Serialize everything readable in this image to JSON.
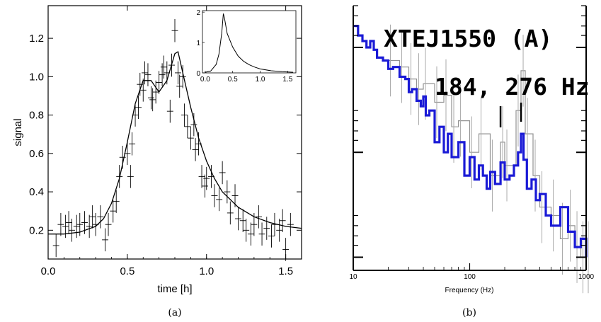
{
  "chart_data": [
    {
      "panel": "(a)",
      "type": "scatter",
      "xlabel": "time [h]",
      "ylabel": "signal",
      "xlim": [
        0.0,
        1.6
      ],
      "ylim": [
        0.05,
        1.37
      ],
      "xticks": [
        0.0,
        0.5,
        1.0,
        1.5
      ],
      "xtick_labels": [
        "0.0",
        "0.5",
        "1.0",
        "1.5"
      ],
      "yticks": [
        0.2,
        0.4,
        0.6,
        0.8,
        1.0,
        1.2
      ],
      "ytick_labels": [
        "0.2",
        "0.4",
        "0.6",
        "0.8",
        "1.0",
        "1.2"
      ],
      "grid": false,
      "series": [
        {
          "kind": "points_with_error_bars",
          "x": [
            0.05,
            0.08,
            0.11,
            0.13,
            0.15,
            0.18,
            0.2,
            0.23,
            0.26,
            0.28,
            0.3,
            0.33,
            0.36,
            0.38,
            0.41,
            0.43,
            0.45,
            0.47,
            0.5,
            0.52,
            0.53,
            0.55,
            0.57,
            0.58,
            0.6,
            0.61,
            0.63,
            0.65,
            0.66,
            0.68,
            0.7,
            0.72,
            0.73,
            0.75,
            0.77,
            0.78,
            0.8,
            0.82,
            0.83,
            0.85,
            0.86,
            0.88,
            0.9,
            0.92,
            0.93,
            0.95,
            0.97,
            0.99,
            1.0,
            1.03,
            1.05,
            1.08,
            1.1,
            1.13,
            1.15,
            1.18,
            1.2,
            1.23,
            1.25,
            1.28,
            1.3,
            1.33,
            1.35,
            1.38,
            1.41,
            1.43,
            1.46,
            1.48,
            1.5,
            1.53
          ],
          "y": [
            0.12,
            0.23,
            0.22,
            0.24,
            0.2,
            0.22,
            0.23,
            0.24,
            0.22,
            0.27,
            0.23,
            0.27,
            0.15,
            0.23,
            0.3,
            0.35,
            0.48,
            0.58,
            0.6,
            0.48,
            0.65,
            0.8,
            0.84,
            0.96,
            0.93,
            1.02,
            1.01,
            0.89,
            0.88,
            0.92,
            0.97,
            1.01,
            1.05,
            1.02,
            0.82,
            1.06,
            1.24,
            1.02,
            0.95,
            1.0,
            0.8,
            0.74,
            0.68,
            0.75,
            0.62,
            0.65,
            0.48,
            0.43,
            0.47,
            0.48,
            0.38,
            0.36,
            0.5,
            0.4,
            0.29,
            0.38,
            0.26,
            0.25,
            0.2,
            0.18,
            0.23,
            0.27,
            0.18,
            0.21,
            0.17,
            0.23,
            0.2,
            0.25,
            0.1,
            0.23
          ],
          "yerr": 0.06,
          "xerr": 0.02
        },
        {
          "kind": "fit_line",
          "x": [
            0.0,
            0.1,
            0.2,
            0.3,
            0.35,
            0.4,
            0.45,
            0.5,
            0.55,
            0.6,
            0.65,
            0.7,
            0.75,
            0.8,
            0.82,
            0.85,
            0.9,
            0.95,
            1.0,
            1.05,
            1.1,
            1.2,
            1.3,
            1.4,
            1.5,
            1.6
          ],
          "y": [
            0.18,
            0.18,
            0.19,
            0.22,
            0.26,
            0.34,
            0.47,
            0.66,
            0.86,
            0.98,
            0.98,
            0.92,
            0.98,
            1.12,
            1.13,
            1.02,
            0.84,
            0.68,
            0.56,
            0.47,
            0.4,
            0.32,
            0.27,
            0.24,
            0.22,
            0.21
          ]
        }
      ],
      "inset": {
        "type": "line",
        "xlim": [
          -0.05,
          1.65
        ],
        "ylim": [
          0,
          2.05
        ],
        "xtick_labels": [
          "0.0",
          "0.5",
          "1.0",
          "1.5"
        ],
        "ytick_labels": [
          "0",
          "1",
          "2"
        ],
        "x": [
          0.0,
          0.1,
          0.2,
          0.25,
          0.3,
          0.33,
          0.35,
          0.4,
          0.5,
          0.6,
          0.7,
          0.8,
          0.9,
          1.0,
          1.2,
          1.4,
          1.6
        ],
        "y": [
          0.02,
          0.06,
          0.28,
          0.62,
          1.3,
          1.95,
          1.8,
          1.3,
          0.85,
          0.55,
          0.38,
          0.27,
          0.19,
          0.13,
          0.07,
          0.04,
          0.02
        ]
      },
      "caption": "(a)"
    },
    {
      "panel": "(b)",
      "type": "line",
      "scale": "log-log",
      "title": "XTEJ1550 (A)",
      "annotation": "184, 276 Hz",
      "annotation_markers_hz": [
        184,
        276
      ],
      "xlabel": "Frequency (Hz)",
      "xlim": [
        10,
        1000
      ],
      "xtick_labels": [
        "10",
        "100",
        "1000"
      ],
      "series": [
        {
          "color": "#1a1ad6",
          "style": "steps",
          "x": [
            10,
            11,
            12,
            13,
            14,
            15,
            16,
            18,
            20,
            22,
            25,
            28,
            30,
            32,
            35,
            38,
            40,
            42,
            45,
            50,
            55,
            60,
            65,
            70,
            80,
            90,
            100,
            110,
            120,
            130,
            140,
            150,
            165,
            184,
            200,
            220,
            240,
            260,
            276,
            290,
            310,
            340,
            370,
            400,
            450,
            500,
            600,
            700,
            800,
            900,
            1000
          ],
          "y": [
            3.2,
            2.6,
            2.3,
            2.0,
            2.3,
            1.9,
            1.6,
            1.5,
            1.25,
            1.3,
            1.05,
            1.0,
            0.75,
            0.8,
            0.62,
            0.55,
            0.68,
            0.45,
            0.5,
            0.25,
            0.35,
            0.2,
            0.3,
            0.18,
            0.25,
            0.12,
            0.18,
            0.11,
            0.15,
            0.12,
            0.09,
            0.13,
            0.1,
            0.16,
            0.11,
            0.12,
            0.15,
            0.2,
            0.3,
            0.17,
            0.09,
            0.11,
            0.07,
            0.08,
            0.05,
            0.04,
            0.06,
            0.035,
            0.025,
            0.03,
            0.02
          ]
        },
        {
          "color": "#777777",
          "style": "steps",
          "x": [
            20,
            25,
            30,
            35,
            40,
            50,
            60,
            70,
            80,
            100,
            120,
            150,
            184,
            200,
            250,
            276,
            300,
            350,
            400,
            500,
            600,
            700,
            800,
            900,
            1000
          ],
          "y": [
            1.5,
            1.3,
            1.0,
            0.8,
            0.9,
            0.6,
            0.7,
            0.35,
            0.4,
            0.2,
            0.3,
            0.12,
            0.25,
            0.15,
            0.5,
            1.2,
            0.3,
            0.12,
            0.06,
            0.05,
            0.03,
            0.04,
            0.025,
            0.02,
            0.02
          ]
        }
      ],
      "caption": "(b)"
    }
  ]
}
